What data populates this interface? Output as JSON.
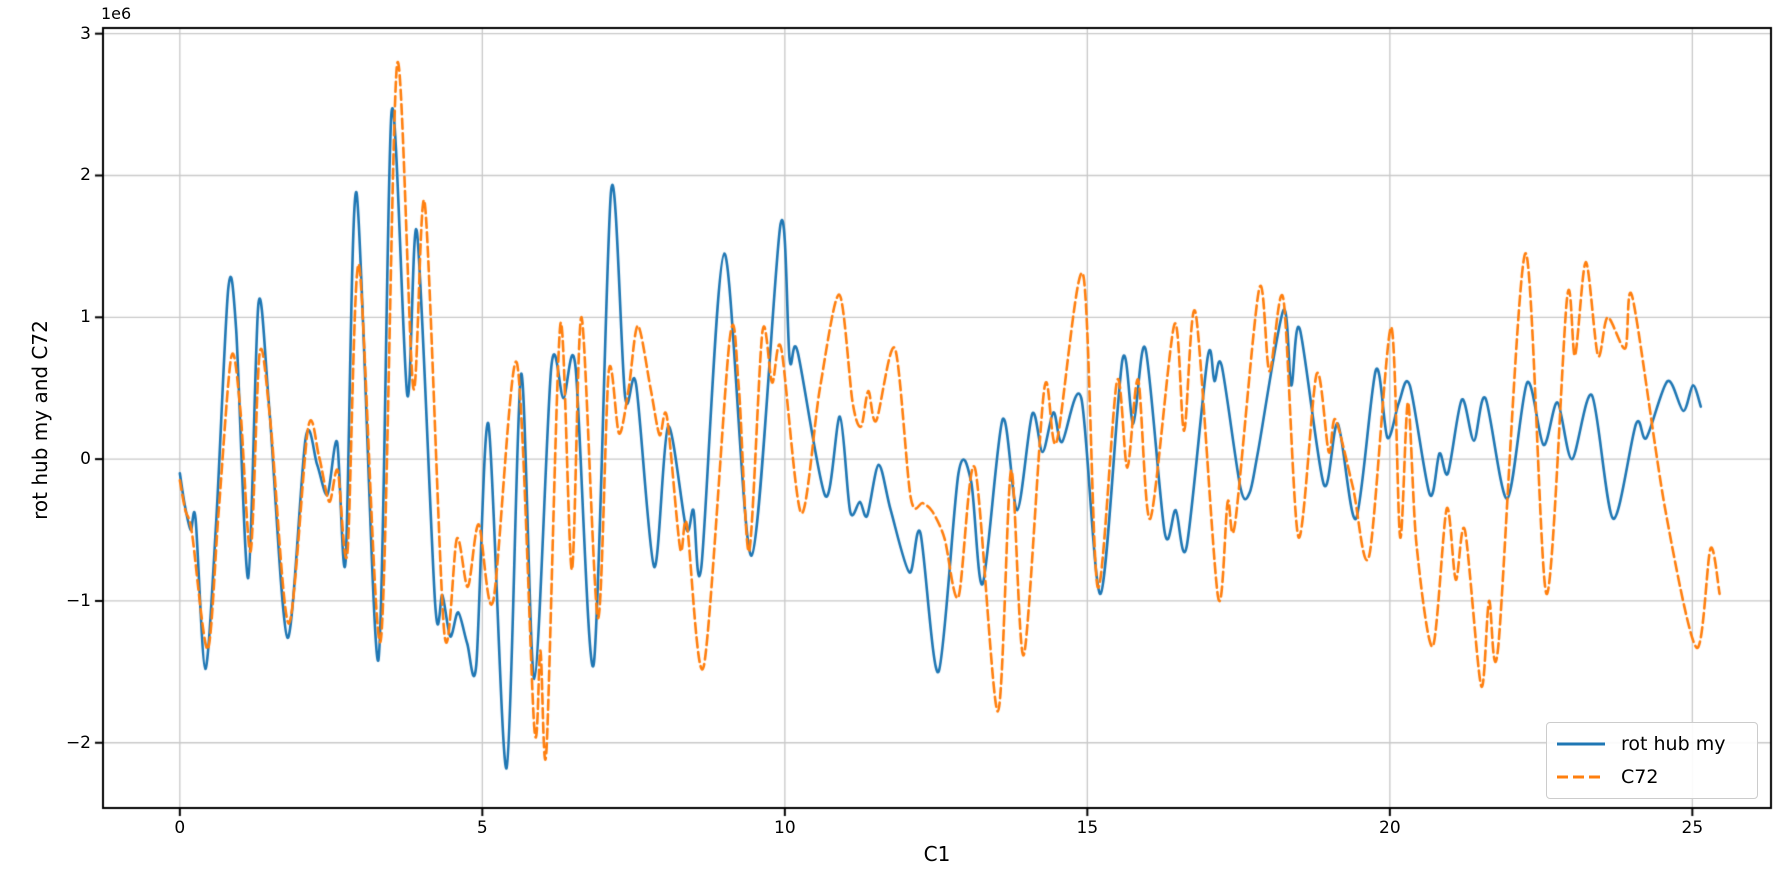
{
  "figure": {
    "background": "#ffffff"
  },
  "chart_data": {
    "type": "line",
    "title": "",
    "xlabel": "C1",
    "ylabel": "rot hub my and C72",
    "offset_text": "1e6",
    "y_unit_multiplier": 1000000,
    "grid": true,
    "legend_position": "lower right",
    "xlim": [
      -1.27,
      26.3
    ],
    "ylim": [
      -2.46,
      3.04
    ],
    "xticks": [
      0,
      5,
      10,
      15,
      20,
      25
    ],
    "yticks": [
      -2,
      -1,
      0,
      1,
      2,
      3
    ],
    "xtick_labels": [
      "0",
      "5",
      "10",
      "15",
      "20",
      "25"
    ],
    "ytick_labels": [
      "−2",
      "−1",
      "0",
      "1",
      "2",
      "3"
    ],
    "grid_color": "#c9c9c9",
    "spine_color": "#000000",
    "series": [
      {
        "name": "rot hub my",
        "color": "#1f77b4",
        "style": "solid",
        "line_width": 2.6,
        "points": [
          [
            0.0,
            -0.1
          ],
          [
            0.08,
            -0.32
          ],
          [
            0.18,
            -0.5
          ],
          [
            0.26,
            -0.42
          ],
          [
            0.42,
            -1.48
          ],
          [
            0.6,
            -0.45
          ],
          [
            0.8,
            1.2
          ],
          [
            0.93,
            0.92
          ],
          [
            1.13,
            -0.84
          ],
          [
            1.3,
            1.1
          ],
          [
            1.48,
            0.35
          ],
          [
            1.78,
            -1.26
          ],
          [
            2.08,
            0.15
          ],
          [
            2.27,
            -0.04
          ],
          [
            2.44,
            -0.25
          ],
          [
            2.6,
            0.12
          ],
          [
            2.74,
            -0.72
          ],
          [
            2.92,
            1.88
          ],
          [
            3.28,
            -1.42
          ],
          [
            3.5,
            2.45
          ],
          [
            3.76,
            0.45
          ],
          [
            3.92,
            1.6
          ],
          [
            4.22,
            -1.02
          ],
          [
            4.34,
            -0.96
          ],
          [
            4.47,
            -1.25
          ],
          [
            4.6,
            -1.08
          ],
          [
            4.75,
            -1.3
          ],
          [
            4.9,
            -1.45
          ],
          [
            5.1,
            0.25
          ],
          [
            5.4,
            -2.18
          ],
          [
            5.64,
            0.6
          ],
          [
            5.86,
            -1.55
          ],
          [
            6.14,
            0.65
          ],
          [
            6.34,
            0.43
          ],
          [
            6.54,
            0.65
          ],
          [
            6.84,
            -1.45
          ],
          [
            7.13,
            1.9
          ],
          [
            7.36,
            0.44
          ],
          [
            7.54,
            0.53
          ],
          [
            7.84,
            -0.76
          ],
          [
            8.07,
            0.23
          ],
          [
            8.37,
            -0.49
          ],
          [
            8.49,
            -0.36
          ],
          [
            8.62,
            -0.76
          ],
          [
            9.0,
            1.45
          ],
          [
            9.45,
            -0.68
          ],
          [
            9.93,
            1.66
          ],
          [
            10.08,
            0.7
          ],
          [
            10.21,
            0.76
          ],
          [
            10.67,
            -0.26
          ],
          [
            10.91,
            0.3
          ],
          [
            11.08,
            -0.37
          ],
          [
            11.24,
            -0.3
          ],
          [
            11.36,
            -0.4
          ],
          [
            11.55,
            -0.04
          ],
          [
            11.75,
            -0.36
          ],
          [
            12.06,
            -0.8
          ],
          [
            12.24,
            -0.52
          ],
          [
            12.54,
            -1.5
          ],
          [
            12.87,
            -0.1
          ],
          [
            13.08,
            -0.16
          ],
          [
            13.27,
            -0.88
          ],
          [
            13.6,
            0.28
          ],
          [
            13.84,
            -0.36
          ],
          [
            14.09,
            0.32
          ],
          [
            14.26,
            0.05
          ],
          [
            14.44,
            0.33
          ],
          [
            14.58,
            0.12
          ],
          [
            14.9,
            0.43
          ],
          [
            15.22,
            -0.95
          ],
          [
            15.58,
            0.7
          ],
          [
            15.76,
            0.25
          ],
          [
            15.96,
            0.78
          ],
          [
            16.28,
            -0.52
          ],
          [
            16.46,
            -0.36
          ],
          [
            16.64,
            -0.62
          ],
          [
            16.99,
            0.72
          ],
          [
            17.1,
            0.55
          ],
          [
            17.22,
            0.66
          ],
          [
            17.53,
            -0.2
          ],
          [
            17.68,
            -0.24
          ],
          [
            17.82,
            0.05
          ],
          [
            18.24,
            1.05
          ],
          [
            18.37,
            0.52
          ],
          [
            18.51,
            0.92
          ],
          [
            18.91,
            -0.18
          ],
          [
            19.14,
            0.25
          ],
          [
            19.44,
            -0.42
          ],
          [
            19.77,
            0.63
          ],
          [
            19.96,
            0.15
          ],
          [
            20.15,
            0.4
          ],
          [
            20.33,
            0.52
          ],
          [
            20.66,
            -0.25
          ],
          [
            20.82,
            0.04
          ],
          [
            20.96,
            -0.1
          ],
          [
            21.19,
            0.42
          ],
          [
            21.39,
            0.13
          ],
          [
            21.58,
            0.43
          ],
          [
            21.94,
            -0.28
          ],
          [
            22.27,
            0.54
          ],
          [
            22.54,
            0.1
          ],
          [
            22.77,
            0.4
          ],
          [
            23.01,
            0.0
          ],
          [
            23.34,
            0.45
          ],
          [
            23.69,
            -0.42
          ],
          [
            24.07,
            0.25
          ],
          [
            24.24,
            0.15
          ],
          [
            24.59,
            0.55
          ],
          [
            24.85,
            0.34
          ],
          [
            25.01,
            0.52
          ],
          [
            25.14,
            0.37
          ]
        ]
      },
      {
        "name": "C72",
        "color": "#ff7f0e",
        "style": "dashed",
        "line_width": 2.6,
        "points": [
          [
            0.0,
            -0.15
          ],
          [
            0.09,
            -0.36
          ],
          [
            0.2,
            -0.52
          ],
          [
            0.46,
            -1.34
          ],
          [
            0.64,
            -0.38
          ],
          [
            0.85,
            0.72
          ],
          [
            1.0,
            0.35
          ],
          [
            1.17,
            -0.65
          ],
          [
            1.32,
            0.75
          ],
          [
            1.5,
            0.25
          ],
          [
            1.8,
            -1.16
          ],
          [
            2.12,
            0.22
          ],
          [
            2.3,
            0.02
          ],
          [
            2.47,
            -0.3
          ],
          [
            2.61,
            -0.08
          ],
          [
            2.77,
            -0.66
          ],
          [
            2.96,
            1.37
          ],
          [
            3.32,
            -1.28
          ],
          [
            3.59,
            2.78
          ],
          [
            3.86,
            0.5
          ],
          [
            4.05,
            1.8
          ],
          [
            4.37,
            -1.22
          ],
          [
            4.58,
            -0.56
          ],
          [
            4.76,
            -0.9
          ],
          [
            4.94,
            -0.46
          ],
          [
            5.18,
            -1.0
          ],
          [
            5.57,
            0.68
          ],
          [
            5.86,
            -1.9
          ],
          [
            5.96,
            -1.35
          ],
          [
            6.06,
            -2.05
          ],
          [
            6.29,
            0.95
          ],
          [
            6.48,
            -0.78
          ],
          [
            6.64,
            1.0
          ],
          [
            6.91,
            -1.12
          ],
          [
            7.09,
            0.62
          ],
          [
            7.26,
            0.18
          ],
          [
            7.42,
            0.5
          ],
          [
            7.57,
            0.94
          ],
          [
            7.78,
            0.5
          ],
          [
            7.93,
            0.17
          ],
          [
            8.05,
            0.3
          ],
          [
            8.27,
            -0.63
          ],
          [
            8.38,
            -0.46
          ],
          [
            8.66,
            -1.46
          ],
          [
            9.09,
            0.85
          ],
          [
            9.24,
            0.5
          ],
          [
            9.41,
            -0.65
          ],
          [
            9.63,
            0.9
          ],
          [
            9.79,
            0.54
          ],
          [
            9.94,
            0.78
          ],
          [
            10.27,
            -0.38
          ],
          [
            10.58,
            0.5
          ],
          [
            10.9,
            1.16
          ],
          [
            11.12,
            0.4
          ],
          [
            11.26,
            0.23
          ],
          [
            11.38,
            0.48
          ],
          [
            11.51,
            0.27
          ],
          [
            11.82,
            0.78
          ],
          [
            12.08,
            -0.27
          ],
          [
            12.28,
            -0.31
          ],
          [
            12.44,
            -0.37
          ],
          [
            12.64,
            -0.56
          ],
          [
            12.87,
            -0.97
          ],
          [
            13.14,
            -0.06
          ],
          [
            13.52,
            -1.78
          ],
          [
            13.74,
            -0.08
          ],
          [
            13.95,
            -1.38
          ],
          [
            14.29,
            0.5
          ],
          [
            14.49,
            0.12
          ],
          [
            14.93,
            1.3
          ],
          [
            15.17,
            -0.9
          ],
          [
            15.49,
            0.55
          ],
          [
            15.66,
            -0.06
          ],
          [
            15.84,
            0.56
          ],
          [
            16.04,
            -0.42
          ],
          [
            16.44,
            0.95
          ],
          [
            16.6,
            0.2
          ],
          [
            16.79,
            1.03
          ],
          [
            17.16,
            -0.97
          ],
          [
            17.32,
            -0.3
          ],
          [
            17.44,
            -0.46
          ],
          [
            17.84,
            1.2
          ],
          [
            18.01,
            0.62
          ],
          [
            18.24,
            1.13
          ],
          [
            18.49,
            -0.55
          ],
          [
            18.79,
            0.6
          ],
          [
            18.99,
            0.05
          ],
          [
            19.1,
            0.28
          ],
          [
            19.39,
            -0.2
          ],
          [
            19.66,
            -0.68
          ],
          [
            20.02,
            0.93
          ],
          [
            20.17,
            -0.55
          ],
          [
            20.3,
            0.4
          ],
          [
            20.44,
            -0.6
          ],
          [
            20.71,
            -1.32
          ],
          [
            20.94,
            -0.35
          ],
          [
            21.09,
            -0.85
          ],
          [
            21.24,
            -0.5
          ],
          [
            21.51,
            -1.6
          ],
          [
            21.64,
            -1.0
          ],
          [
            21.79,
            -1.33
          ],
          [
            22.24,
            1.45
          ],
          [
            22.59,
            -0.95
          ],
          [
            22.93,
            1.14
          ],
          [
            23.06,
            0.73
          ],
          [
            23.24,
            1.39
          ],
          [
            23.44,
            0.73
          ],
          [
            23.6,
            1.0
          ],
          [
            23.89,
            0.78
          ],
          [
            24.01,
            1.14
          ],
          [
            24.55,
            -0.35
          ],
          [
            25.07,
            -1.33
          ],
          [
            25.3,
            -0.63
          ],
          [
            25.45,
            -0.95
          ]
        ]
      }
    ]
  },
  "legend": {
    "entries": [
      {
        "label": "rot hub my",
        "color": "#1f77b4",
        "style": "solid"
      },
      {
        "label": "C72",
        "color": "#ff7f0e",
        "style": "dashed"
      }
    ]
  }
}
